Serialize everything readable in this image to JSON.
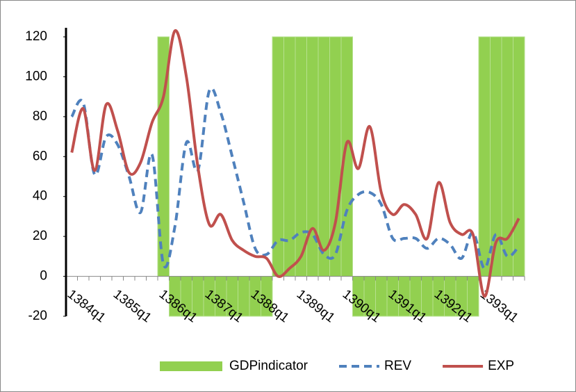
{
  "chart_data": {
    "type": "line",
    "categories": [
      "1384q1",
      null,
      null,
      null,
      "1385q1",
      null,
      null,
      null,
      "1386q1",
      null,
      null,
      null,
      "1387q1",
      null,
      null,
      null,
      "1388q1",
      null,
      null,
      null,
      "1389q1",
      null,
      null,
      null,
      "1390q1",
      null,
      null,
      null,
      "1391q1",
      null,
      null,
      null,
      "1392q1",
      null,
      null,
      null,
      "1393q1",
      null,
      null,
      null
    ],
    "series": [
      {
        "name": "GDPindicator",
        "type": "bar",
        "color": "#92d050",
        "values": [
          0,
          0,
          0,
          0,
          0,
          0,
          0,
          0,
          120,
          -20,
          -20,
          -20,
          -20,
          -20,
          -20,
          -20,
          -20,
          -20,
          120,
          120,
          120,
          120,
          120,
          120,
          120,
          -20,
          -20,
          -20,
          -20,
          -20,
          -20,
          -20,
          -20,
          -20,
          -20,
          -20,
          120,
          120,
          120,
          120
        ]
      },
      {
        "name": "REV",
        "type": "line",
        "dashed": true,
        "color": "#4f81bd",
        "values": [
          80,
          87,
          51,
          70,
          66,
          50,
          32,
          61,
          6,
          25,
          67,
          53,
          93,
          82,
          60,
          37,
          14,
          11,
          18,
          18,
          22,
          21,
          11,
          11,
          33,
          41,
          42,
          36,
          19,
          19,
          19,
          14,
          19,
          16,
          9,
          22,
          4,
          21,
          10,
          15
        ]
      },
      {
        "name": "EXP",
        "type": "line",
        "dashed": false,
        "color": "#c0504d",
        "values": [
          62,
          84,
          53,
          86,
          73,
          52,
          57,
          77,
          90,
          123,
          100,
          55,
          26,
          31,
          18,
          13,
          10,
          9,
          0,
          4,
          10,
          24,
          13,
          27,
          67,
          54,
          75,
          42,
          31,
          36,
          31,
          19,
          47,
          27,
          21,
          21,
          -10,
          17,
          19,
          29
        ]
      }
    ],
    "ylim": [
      -20,
      120
    ],
    "yticks": [
      -20,
      0,
      20,
      40,
      60,
      80,
      100,
      120
    ],
    "legend": "bottom"
  }
}
